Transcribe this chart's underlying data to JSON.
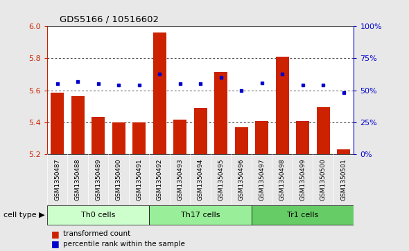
{
  "title": "GDS5166 / 10516602",
  "samples": [
    "GSM1350487",
    "GSM1350488",
    "GSM1350489",
    "GSM1350490",
    "GSM1350491",
    "GSM1350492",
    "GSM1350493",
    "GSM1350494",
    "GSM1350495",
    "GSM1350496",
    "GSM1350497",
    "GSM1350498",
    "GSM1350499",
    "GSM1350500",
    "GSM1350501"
  ],
  "bar_values": [
    5.585,
    5.565,
    5.435,
    5.4,
    5.4,
    5.96,
    5.415,
    5.49,
    5.715,
    5.37,
    5.41,
    5.81,
    5.41,
    5.495,
    5.23
  ],
  "dot_values": [
    55,
    57,
    55,
    54,
    54,
    63,
    55,
    55,
    60,
    50,
    56,
    63,
    54,
    54,
    48
  ],
  "ymin": 5.2,
  "ymax": 6.0,
  "yticks": [
    5.2,
    5.4,
    5.6,
    5.8,
    6.0
  ],
  "y2min": 0,
  "y2max": 100,
  "y2ticks": [
    0,
    25,
    50,
    75,
    100
  ],
  "bar_color": "#cc2200",
  "dot_color": "#0000cc",
  "cell_groups": [
    {
      "label": "Th0 cells",
      "start": 0,
      "end": 5,
      "color": "#ccffcc"
    },
    {
      "label": "Th17 cells",
      "start": 5,
      "end": 10,
      "color": "#99ee99"
    },
    {
      "label": "Tr1 cells",
      "start": 10,
      "end": 15,
      "color": "#66cc66"
    }
  ],
  "legend_entries": [
    {
      "label": "transformed count",
      "color": "#cc2200"
    },
    {
      "label": "percentile rank within the sample",
      "color": "#0000cc"
    }
  ],
  "cell_type_label": "cell type",
  "bg_color": "#e8e8e8",
  "plot_bg": "#ffffff",
  "tick_color_left": "#cc2200",
  "tick_color_right": "#0000cc",
  "label_bg": "#d0d0d0"
}
